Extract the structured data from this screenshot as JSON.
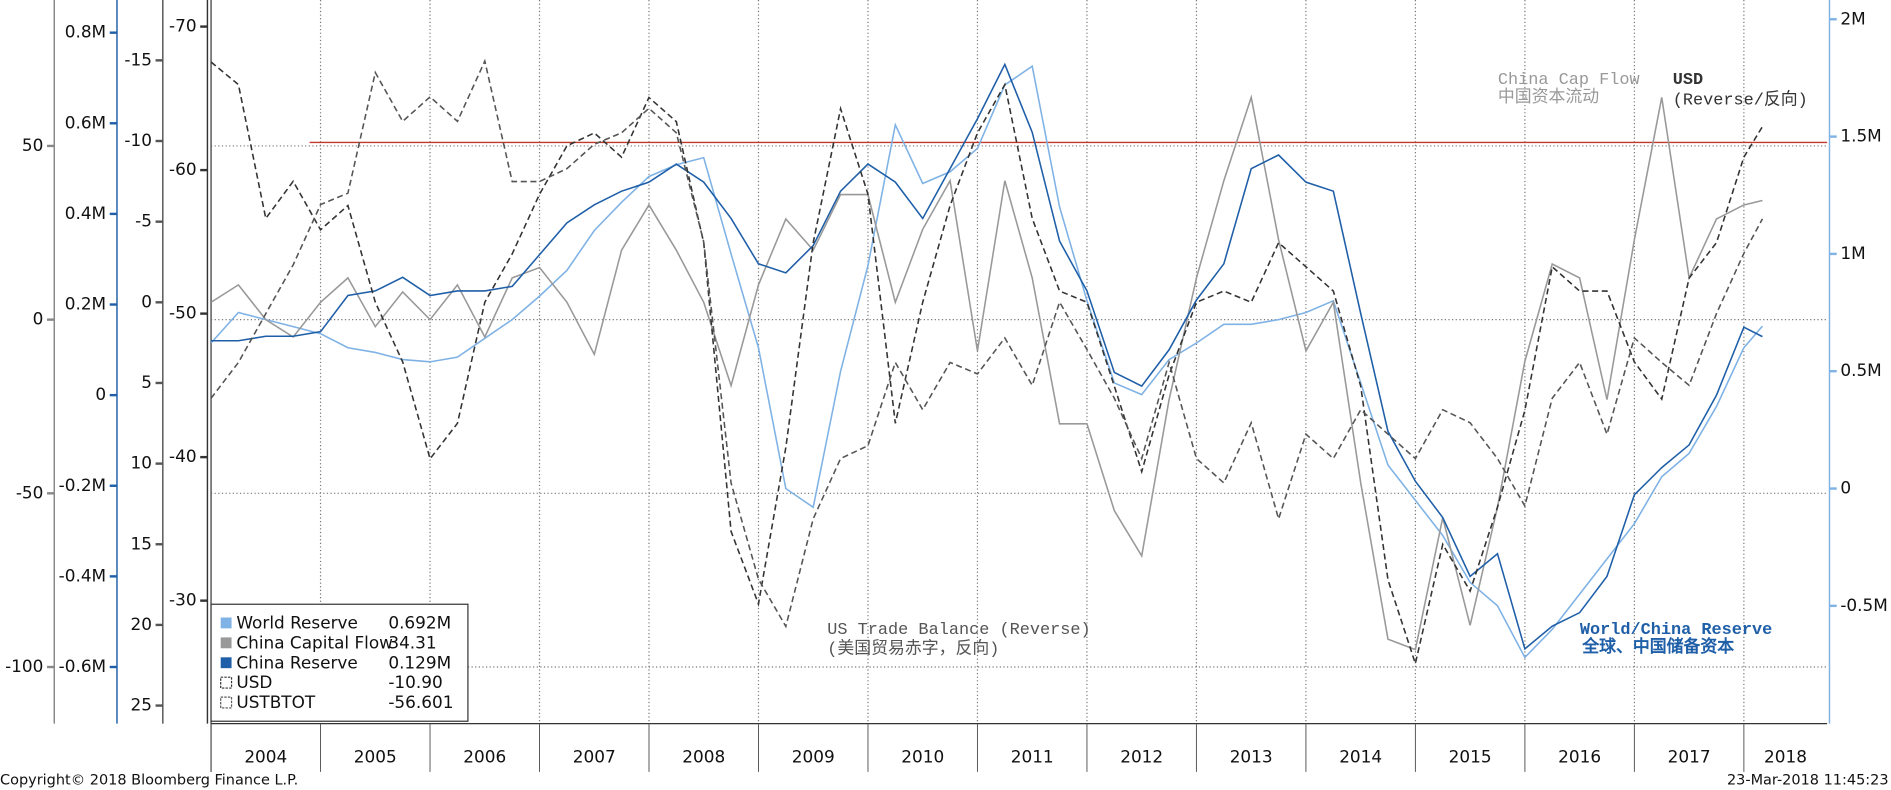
{
  "chart_data": {
    "type": "line",
    "x": [
      2004,
      2004.25,
      2004.5,
      2004.75,
      2005,
      2005.25,
      2005.5,
      2005.75,
      2006,
      2006.25,
      2006.5,
      2006.75,
      2007,
      2007.25,
      2007.5,
      2007.75,
      2008,
      2008.25,
      2008.5,
      2008.75,
      2009,
      2009.25,
      2009.5,
      2009.75,
      2010,
      2010.25,
      2010.5,
      2010.75,
      2011,
      2011.25,
      2011.5,
      2011.75,
      2012,
      2012.25,
      2012.5,
      2012.75,
      2013,
      2013.25,
      2013.5,
      2013.75,
      2014,
      2014.25,
      2014.5,
      2014.75,
      2015,
      2015.25,
      2015.5,
      2015.75,
      2016,
      2016.25,
      2016.5,
      2016.75,
      2017,
      2017.25,
      2017.5,
      2017.75,
      2018,
      2018.17
    ],
    "xlim": [
      2004,
      2018.76
    ],
    "xticks": [
      2004,
      2005,
      2006,
      2007,
      2008,
      2009,
      2010,
      2011,
      2012,
      2013,
      2014,
      2015,
      2016,
      2017,
      2018
    ],
    "ylim": [
      -1.002,
      2.082
    ],
    "yticks": [
      {
        "value": 2,
        "label": "2M"
      },
      {
        "value": 1.5,
        "label": "1.5M"
      },
      {
        "value": 1,
        "label": "1M"
      },
      {
        "value": 0.5,
        "label": "0.5M"
      },
      0,
      {
        "value": -0.5,
        "label": "-0.5M"
      }
    ],
    "y2lim": [
      -116.3,
      92
    ],
    "y2ticks": [
      50,
      0,
      -50,
      -100
    ],
    "y3lim": [
      -0.725,
      0.872
    ],
    "y3ticks": [
      {
        "value": 0.8,
        "label": "0.8M"
      },
      {
        "value": 0.6,
        "label": "0.6M"
      },
      {
        "value": 0.4,
        "label": "0.4M"
      },
      {
        "value": 0.2,
        "label": "0.2M"
      },
      0,
      {
        "value": -0.2,
        "label": "-0.2M"
      },
      {
        "value": -0.4,
        "label": "-0.4M"
      },
      {
        "value": -0.6,
        "label": "-0.6M"
      }
    ],
    "y4lim": [
      26.12,
      -18.74
    ],
    "y4ticks": [
      -15,
      -10,
      -5,
      0,
      5,
      10,
      15,
      20,
      25
    ],
    "y5lim": [
      -21.43,
      -71.85
    ],
    "y5ticks": [
      -70,
      -60,
      -50,
      -40,
      -30
    ],
    "grid": true,
    "reference_line": {
      "axis": "y2",
      "value": 51,
      "x_start": 2004.9,
      "color": "#c0392b"
    },
    "series": [
      {
        "name": "World Reserve",
        "color": "#7fb2e5",
        "axis": "y",
        "legend_value": "0.692M",
        "values": [
          0.62,
          0.75,
          0.72,
          0.69,
          0.66,
          0.6,
          0.58,
          0.55,
          0.54,
          0.56,
          0.64,
          0.72,
          0.82,
          0.93,
          1.1,
          1.22,
          1.33,
          1.38,
          1.41,
          1.0,
          0.6,
          0.0,
          -0.08,
          0.5,
          0.95,
          1.55,
          1.3,
          1.35,
          1.45,
          1.72,
          1.8,
          1.2,
          0.8,
          0.45,
          0.4,
          0.55,
          0.62,
          0.7,
          0.7,
          0.72,
          0.75,
          0.8,
          0.45,
          0.1,
          -0.05,
          -0.2,
          -0.4,
          -0.5,
          -0.72,
          -0.6,
          -0.45,
          -0.3,
          -0.15,
          0.05,
          0.15,
          0.35,
          0.6,
          0.692
        ]
      },
      {
        "name": "China Capital Flow",
        "color": "#999999",
        "axis": "y2",
        "legend_value": "34.31",
        "values": [
          5,
          10,
          0,
          -5,
          5,
          12,
          -2,
          8,
          0,
          10,
          -5,
          12,
          15,
          5,
          -10,
          20,
          33,
          20,
          5,
          -19,
          10,
          29,
          20,
          36,
          36,
          5,
          26,
          40,
          -9,
          40,
          12,
          -30,
          -30,
          -55,
          -68,
          -23,
          12,
          40,
          64,
          23,
          -9,
          5,
          -47,
          -92,
          -95,
          -57,
          -88,
          -54,
          -12,
          16,
          12,
          -23,
          23,
          64,
          12,
          29,
          33,
          34.31
        ]
      },
      {
        "name": "China Reserve",
        "color": "#1f5fa8",
        "axis": "y3",
        "legend_value": "0.129M",
        "values": [
          0.12,
          0.12,
          0.13,
          0.13,
          0.14,
          0.22,
          0.23,
          0.26,
          0.22,
          0.23,
          0.23,
          0.24,
          0.31,
          0.38,
          0.42,
          0.45,
          0.47,
          0.51,
          0.47,
          0.39,
          0.29,
          0.27,
          0.33,
          0.45,
          0.51,
          0.47,
          0.39,
          0.5,
          0.61,
          0.73,
          0.58,
          0.34,
          0.23,
          0.05,
          0.02,
          0.1,
          0.21,
          0.29,
          0.5,
          0.53,
          0.47,
          0.45,
          0.18,
          -0.08,
          -0.19,
          -0.27,
          -0.4,
          -0.35,
          -0.56,
          -0.51,
          -0.48,
          -0.4,
          -0.22,
          -0.16,
          -0.11,
          0.0,
          0.15,
          0.129
        ]
      },
      {
        "name": "USD",
        "color": "#333333",
        "axis": "y4",
        "dash": true,
        "legend_value": "-10.90",
        "values": [
          -14.9,
          -13.5,
          -5.2,
          -7.5,
          -4.5,
          -6,
          0,
          3.7,
          9.7,
          7.5,
          0,
          -3,
          -6.7,
          -9.7,
          -10.5,
          -9,
          -12.7,
          -11.2,
          -3.7,
          14.2,
          18.7,
          9,
          -3.7,
          -12,
          -6.7,
          7.5,
          0,
          -6,
          -10.5,
          -13.5,
          -5.2,
          -0.7,
          0,
          5.2,
          10.5,
          4.5,
          0,
          -0.7,
          0,
          -3.7,
          -2.2,
          -0.7,
          5.2,
          17.2,
          22.4,
          15,
          17.9,
          12.7,
          6.7,
          -2.2,
          -0.7,
          -0.7,
          3.7,
          6,
          -1.5,
          -3.7,
          -9,
          -10.9
        ]
      },
      {
        "name": "USTBTOT",
        "color": "#555555",
        "axis": "y5",
        "dash": true,
        "legend_value": "-56.601",
        "values": [
          -44.1,
          -46.6,
          -50,
          -53.4,
          -57.6,
          -58.4,
          -66.8,
          -63.4,
          -65.1,
          -63.4,
          -67.6,
          -59.2,
          -59.2,
          -60.1,
          -61.8,
          -62.6,
          -64.3,
          -62.6,
          -55,
          -38.2,
          -31.5,
          -28.2,
          -35.7,
          -39.9,
          -40.8,
          -46.6,
          -43.3,
          -46.6,
          -45.8,
          -48.3,
          -45,
          -50.8,
          -47.5,
          -44.1,
          -39.9,
          -46.6,
          -39.9,
          -38.2,
          -42.4,
          -35.7,
          -41.6,
          -39.9,
          -43.3,
          -41.6,
          -39.9,
          -43.3,
          -42.4,
          -39.9,
          -36.6,
          -44.1,
          -46.6,
          -41.6,
          -48.3,
          -46.6,
          -45,
          -50,
          -54.2,
          -56.601
        ]
      }
    ],
    "annotations": [
      {
        "text": "China Cap Flow",
        "color": "#999999"
      },
      {
        "text": "中国资本流动",
        "color": "#999999"
      },
      {
        "text": "USD",
        "color": "#333333"
      },
      {
        "text": "(Reverse/反向)",
        "color": "#333333"
      },
      {
        "text": "US Trade Balance (Reverse)",
        "color": "#555555"
      },
      {
        "text": "(美国贸易赤字，反向)",
        "color": "#555555"
      },
      {
        "text": "World/China Reserve",
        "color": "#1f5fa8"
      },
      {
        "text": "全球、中国储备资本",
        "color": "#1f5fa8"
      }
    ],
    "footer_left": "Copyright© 2018 Bloomberg Finance L.P.",
    "footer_right": "23-Mar-2018 11:45:23"
  }
}
